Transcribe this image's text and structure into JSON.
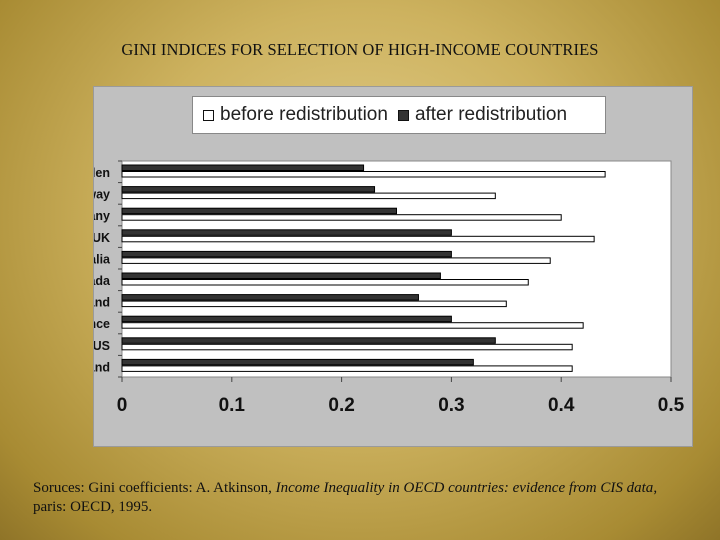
{
  "title": "GINI INDICES FOR SELECTION OF HIGH-INCOME COUNTRIES",
  "legend": {
    "before": "before redistribution",
    "after": "after redistribution"
  },
  "colors": {
    "before": "#ffffff",
    "after": "#333333",
    "plot_background": "#ffffff",
    "panel_background": "#c0c0c0"
  },
  "chart_data": {
    "type": "bar",
    "orientation": "horizontal",
    "categories": [
      "Sweden",
      "Norway",
      "Germany",
      "UK",
      "Australia",
      "Canada",
      "Netherland",
      "France",
      "US",
      "Switzerland"
    ],
    "series": [
      {
        "name": "before redistribution",
        "values": [
          0.44,
          0.34,
          0.4,
          0.43,
          0.39,
          0.37,
          0.35,
          0.42,
          0.41,
          0.41
        ]
      },
      {
        "name": "after redistribution",
        "values": [
          0.22,
          0.23,
          0.25,
          0.3,
          0.3,
          0.29,
          0.27,
          0.3,
          0.34,
          0.32
        ]
      }
    ],
    "xlim": [
      0,
      0.5
    ],
    "xticks": [
      "0",
      "0.1",
      "0.2",
      "0.3",
      "0.4",
      "0.5"
    ],
    "xlabel": "",
    "ylabel": "",
    "grid": false,
    "legend_position": "top"
  },
  "source": {
    "prefix": "Soruces: Gini coefficients: A. Atkinson, ",
    "book": "Income Inequality in OECD countries: evidence from CIS data",
    "suffix": ", paris: OECD, 1995."
  }
}
